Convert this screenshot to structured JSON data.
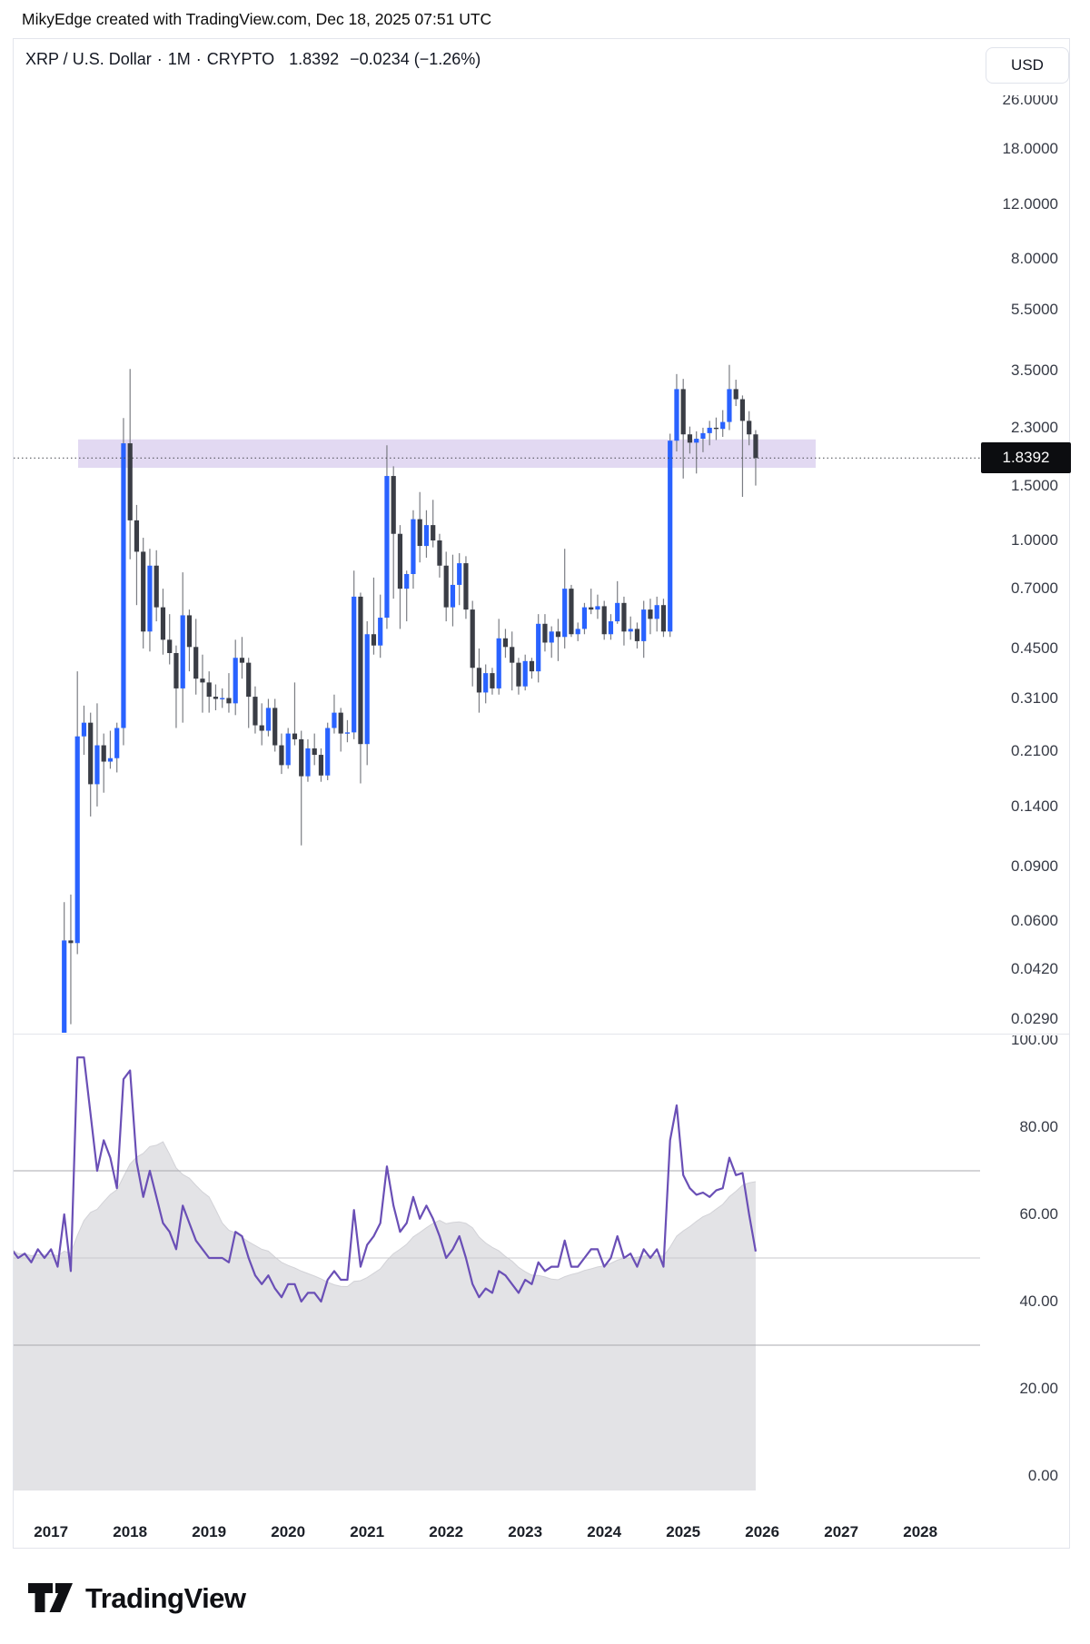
{
  "header": {
    "credit": "MikyEdge created with TradingView.com, Dec 18, 2025 07:51 UTC"
  },
  "title": {
    "symbol": "XRP / U.S. Dollar",
    "interval": "1M",
    "exchange": "CRYPTO",
    "price": "1.8392",
    "change": "−0.0234 (−1.26%)"
  },
  "currency_button": {
    "label": "USD"
  },
  "price_axis": {
    "last_price_label": "1.8392",
    "ticks": [
      {
        "label": "26.0000",
        "value": 26.0
      },
      {
        "label": "18.0000",
        "value": 18.0
      },
      {
        "label": "12.0000",
        "value": 12.0
      },
      {
        "label": "8.0000",
        "value": 8.0
      },
      {
        "label": "5.5000",
        "value": 5.5
      },
      {
        "label": "3.5000",
        "value": 3.5
      },
      {
        "label": "2.3000",
        "value": 2.3
      },
      {
        "label": "1.5000",
        "value": 1.5
      },
      {
        "label": "1.0000",
        "value": 1.0
      },
      {
        "label": "0.7000",
        "value": 0.7
      },
      {
        "label": "0.4500",
        "value": 0.45
      },
      {
        "label": "0.3100",
        "value": 0.31
      },
      {
        "label": "0.2100",
        "value": 0.21
      },
      {
        "label": "0.1400",
        "value": 0.14
      },
      {
        "label": "0.0900",
        "value": 0.09
      },
      {
        "label": "0.0600",
        "value": 0.06
      },
      {
        "label": "0.0420",
        "value": 0.042
      },
      {
        "label": "0.0290",
        "value": 0.029
      }
    ]
  },
  "rsi_axis": {
    "ticks": [
      {
        "label": "100.00",
        "value": 100
      },
      {
        "label": "80.00",
        "value": 80
      },
      {
        "label": "60.00",
        "value": 60
      },
      {
        "label": "40.00",
        "value": 40
      },
      {
        "label": "20.00",
        "value": 20
      },
      {
        "label": "0.00",
        "value": 0
      }
    ]
  },
  "time_axis": {
    "years": [
      2017,
      2018,
      2019,
      2020,
      2021,
      2022,
      2023,
      2024,
      2025,
      2026,
      2027,
      2028
    ]
  },
  "footer": {
    "brand": "TradingView"
  },
  "colors": {
    "up_candle": "#2962ff",
    "down_candle": "#3a3d45",
    "wick": "#7b7d83",
    "dotted_price_line": "#42454c",
    "zone_fill": "rgba(124,80,196,0.22)",
    "rsi_line": "#6a4fb6",
    "rsi_area": "#e3e3e6",
    "rsi_area_edge": "#d2d2d7",
    "rsi_band_line": "#a8a9af",
    "rsi_mid_line": "#c9cacd",
    "price_tag_bg": "#0c0d10",
    "frame": "#e3e5ec"
  },
  "chart_data": {
    "type": "candlestick",
    "symbol": "XRP/USD",
    "timeframe": "1M",
    "price_scale": "log",
    "last_price": 1.8392,
    "zone": {
      "top": 2.11,
      "bottom": 1.71
    },
    "candles_start_month": "2017-03",
    "candles_ohlc": [
      [
        0.006,
        0.069,
        0.0055,
        0.052
      ],
      [
        0.052,
        0.073,
        0.028,
        0.051
      ],
      [
        0.051,
        0.38,
        0.047,
        0.235
      ],
      [
        0.235,
        0.295,
        0.205,
        0.26
      ],
      [
        0.26,
        0.28,
        0.13,
        0.165
      ],
      [
        0.165,
        0.3,
        0.14,
        0.22
      ],
      [
        0.22,
        0.24,
        0.155,
        0.195
      ],
      [
        0.195,
        0.245,
        0.185,
        0.2
      ],
      [
        0.2,
        0.26,
        0.18,
        0.25
      ],
      [
        0.25,
        2.47,
        0.22,
        2.05
      ],
      [
        2.05,
        3.55,
        0.87,
        1.16
      ],
      [
        1.16,
        1.3,
        0.62,
        0.92
      ],
      [
        0.92,
        1.02,
        0.45,
        0.51
      ],
      [
        0.51,
        0.94,
        0.44,
        0.83
      ],
      [
        0.83,
        0.93,
        0.55,
        0.61
      ],
      [
        0.61,
        0.7,
        0.43,
        0.48
      ],
      [
        0.48,
        0.58,
        0.4,
        0.435
      ],
      [
        0.435,
        0.46,
        0.25,
        0.335
      ],
      [
        0.335,
        0.79,
        0.26,
        0.575
      ],
      [
        0.575,
        0.6,
        0.38,
        0.455
      ],
      [
        0.455,
        0.56,
        0.32,
        0.36
      ],
      [
        0.36,
        0.43,
        0.28,
        0.35
      ],
      [
        0.35,
        0.38,
        0.28,
        0.315
      ],
      [
        0.315,
        0.345,
        0.285,
        0.31
      ],
      [
        0.31,
        0.335,
        0.29,
        0.312
      ],
      [
        0.312,
        0.375,
        0.28,
        0.3
      ],
      [
        0.3,
        0.48,
        0.275,
        0.42
      ],
      [
        0.42,
        0.49,
        0.36,
        0.405
      ],
      [
        0.405,
        0.42,
        0.25,
        0.315
      ],
      [
        0.315,
        0.34,
        0.24,
        0.255
      ],
      [
        0.255,
        0.3,
        0.22,
        0.245
      ],
      [
        0.245,
        0.31,
        0.235,
        0.29
      ],
      [
        0.29,
        0.31,
        0.21,
        0.22
      ],
      [
        0.22,
        0.24,
        0.178,
        0.19
      ],
      [
        0.19,
        0.25,
        0.185,
        0.24
      ],
      [
        0.24,
        0.35,
        0.22,
        0.23
      ],
      [
        0.23,
        0.245,
        0.105,
        0.175
      ],
      [
        0.175,
        0.23,
        0.168,
        0.215
      ],
      [
        0.215,
        0.24,
        0.19,
        0.205
      ],
      [
        0.205,
        0.215,
        0.168,
        0.176
      ],
      [
        0.176,
        0.26,
        0.17,
        0.25
      ],
      [
        0.25,
        0.32,
        0.24,
        0.28
      ],
      [
        0.28,
        0.29,
        0.21,
        0.24
      ],
      [
        0.24,
        0.265,
        0.225,
        0.242
      ],
      [
        0.242,
        0.8,
        0.23,
        0.66
      ],
      [
        0.66,
        0.68,
        0.166,
        0.222
      ],
      [
        0.222,
        0.55,
        0.19,
        0.5
      ],
      [
        0.5,
        0.76,
        0.43,
        0.46
      ],
      [
        0.46,
        0.67,
        0.42,
        0.565
      ],
      [
        0.565,
        2.02,
        0.52,
        1.61
      ],
      [
        1.61,
        1.73,
        0.65,
        1.05
      ],
      [
        1.05,
        1.12,
        0.52,
        0.7
      ],
      [
        0.7,
        0.8,
        0.55,
        0.78
      ],
      [
        0.78,
        1.25,
        0.7,
        1.17
      ],
      [
        1.17,
        1.43,
        0.85,
        0.96
      ],
      [
        0.96,
        1.25,
        0.88,
        1.12
      ],
      [
        1.12,
        1.35,
        0.95,
        1.0
      ],
      [
        1.0,
        1.05,
        0.76,
        0.83
      ],
      [
        0.83,
        0.92,
        0.55,
        0.61
      ],
      [
        0.61,
        0.9,
        0.53,
        0.72
      ],
      [
        0.72,
        0.91,
        0.62,
        0.845
      ],
      [
        0.845,
        0.89,
        0.56,
        0.6
      ],
      [
        0.6,
        0.64,
        0.34,
        0.39
      ],
      [
        0.39,
        0.45,
        0.28,
        0.325
      ],
      [
        0.325,
        0.4,
        0.3,
        0.375
      ],
      [
        0.375,
        0.39,
        0.32,
        0.335
      ],
      [
        0.335,
        0.56,
        0.32,
        0.485
      ],
      [
        0.485,
        0.52,
        0.42,
        0.455
      ],
      [
        0.455,
        0.51,
        0.33,
        0.405
      ],
      [
        0.405,
        0.42,
        0.32,
        0.34
      ],
      [
        0.34,
        0.43,
        0.33,
        0.41
      ],
      [
        0.41,
        0.42,
        0.36,
        0.38
      ],
      [
        0.38,
        0.58,
        0.35,
        0.54
      ],
      [
        0.54,
        0.58,
        0.44,
        0.47
      ],
      [
        0.47,
        0.53,
        0.42,
        0.51
      ],
      [
        0.51,
        0.56,
        0.41,
        0.49
      ],
      [
        0.49,
        0.94,
        0.45,
        0.7
      ],
      [
        0.7,
        0.72,
        0.49,
        0.5
      ],
      [
        0.5,
        0.545,
        0.475,
        0.52
      ],
      [
        0.52,
        0.63,
        0.5,
        0.61
      ],
      [
        0.61,
        0.7,
        0.58,
        0.6
      ],
      [
        0.6,
        0.67,
        0.56,
        0.615
      ],
      [
        0.615,
        0.64,
        0.48,
        0.5
      ],
      [
        0.5,
        0.58,
        0.48,
        0.55
      ],
      [
        0.55,
        0.74,
        0.54,
        0.63
      ],
      [
        0.63,
        0.66,
        0.46,
        0.51
      ],
      [
        0.51,
        0.57,
        0.48,
        0.52
      ],
      [
        0.52,
        0.545,
        0.45,
        0.475
      ],
      [
        0.475,
        0.64,
        0.42,
        0.6
      ],
      [
        0.6,
        0.65,
        0.5,
        0.56
      ],
      [
        0.56,
        0.66,
        0.51,
        0.62
      ],
      [
        0.62,
        0.65,
        0.49,
        0.51
      ],
      [
        0.51,
        2.2,
        0.49,
        2.09
      ],
      [
        2.09,
        3.42,
        1.93,
        3.06
      ],
      [
        3.06,
        3.3,
        1.58,
        2.19
      ],
      [
        2.19,
        2.32,
        1.9,
        2.06
      ],
      [
        2.06,
        2.24,
        1.64,
        2.12
      ],
      [
        2.12,
        2.3,
        1.92,
        2.21
      ],
      [
        2.21,
        2.42,
        2.02,
        2.3
      ],
      [
        2.3,
        2.48,
        2.1,
        2.28
      ],
      [
        2.28,
        2.62,
        2.15,
        2.4
      ],
      [
        2.4,
        3.66,
        2.26,
        3.06
      ],
      [
        3.06,
        3.28,
        2.7,
        2.84
      ],
      [
        2.84,
        2.92,
        1.38,
        2.42
      ],
      [
        2.42,
        2.6,
        2.02,
        2.19
      ],
      [
        2.19,
        2.26,
        1.5,
        1.8392
      ]
    ],
    "rsi": {
      "period": 14,
      "ma_period": 14,
      "bands": [
        70,
        50,
        30
      ],
      "start_month": "2016-07",
      "values": [
        52,
        50,
        51,
        49,
        52,
        50,
        52,
        48,
        60,
        47,
        96,
        96,
        83,
        70,
        77,
        73,
        66,
        91,
        93,
        72,
        64,
        70,
        64,
        58,
        56,
        52,
        62,
        58,
        54,
        52,
        50,
        50,
        50,
        49,
        56,
        55,
        50,
        46,
        44,
        46,
        43,
        41,
        44,
        44,
        40,
        42,
        42,
        40,
        45,
        47,
        45,
        45,
        61,
        48,
        53,
        55,
        58,
        71,
        62,
        56,
        58,
        64,
        59,
        62,
        59,
        55,
        50,
        52,
        55,
        50,
        44,
        41,
        43,
        42,
        47,
        46,
        44,
        42,
        45,
        44,
        49,
        47,
        48,
        48,
        54,
        48,
        48,
        50,
        52,
        52,
        48,
        50,
        55,
        50,
        51,
        48,
        52,
        50,
        52,
        48,
        77,
        85,
        69,
        66,
        64.5,
        65,
        64,
        65.5,
        66,
        73,
        69,
        69.5,
        60,
        51.5
      ]
    }
  }
}
